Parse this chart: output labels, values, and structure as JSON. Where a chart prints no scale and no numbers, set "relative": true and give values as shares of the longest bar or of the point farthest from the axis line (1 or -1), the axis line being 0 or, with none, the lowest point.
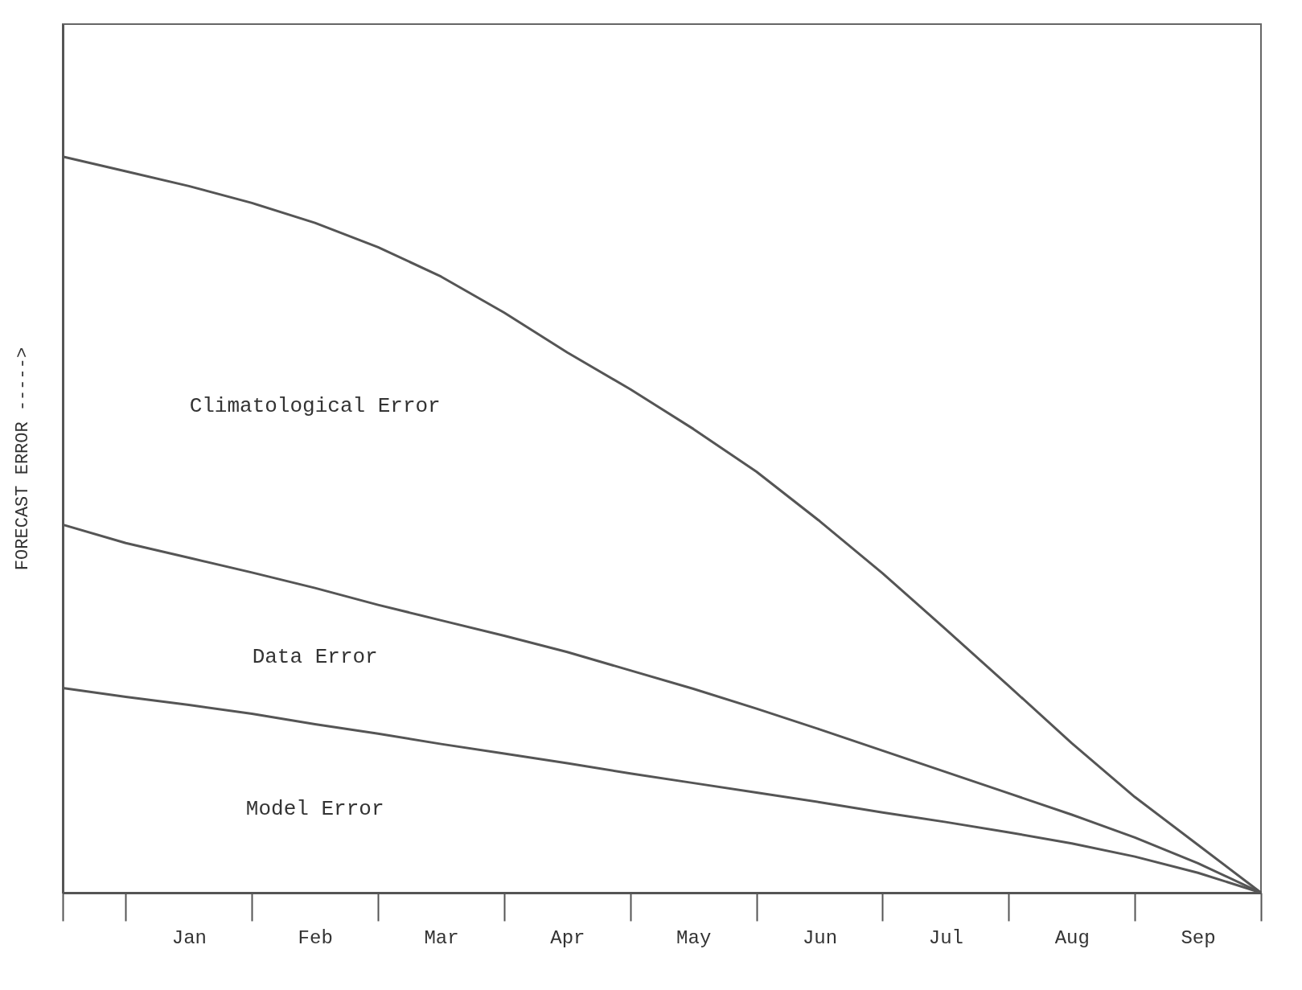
{
  "chart_data": {
    "type": "line",
    "relative": true,
    "ylabel": "FORECAST ERROR ----->",
    "tick_labels": "x",
    "grid": false,
    "legend": false,
    "marker": "none",
    "line_style": "solid",
    "categories": [
      null,
      null,
      "Jan",
      null,
      "Feb",
      null,
      "Mar",
      null,
      "Apr",
      null,
      "May",
      null,
      "Jun",
      null,
      "Jul",
      null,
      "Aug",
      null,
      "Sep",
      null
    ],
    "series": [
      {
        "color": "#555555",
        "values": [
          1,
          0.98,
          0.96,
          0.937,
          0.91,
          0.877,
          0.837,
          0.788,
          0.734,
          0.684,
          0.63,
          0.572,
          0.505,
          0.434,
          0.358,
          0.281,
          0.203,
          0.13,
          0.065,
          0
        ]
      },
      {
        "color": "#555555",
        "values": [
          0.5,
          0.475,
          0.455,
          0.435,
          0.414,
          0.391,
          0.37,
          0.349,
          0.327,
          0.302,
          0.277,
          0.25,
          0.222,
          0.193,
          0.164,
          0.135,
          0.106,
          0.075,
          0.04,
          0
        ]
      },
      {
        "color": "#555555",
        "values": [
          0.278,
          0.266,
          0.255,
          0.243,
          0.229,
          0.216,
          0.202,
          0.189,
          0.176,
          0.162,
          0.149,
          0.136,
          0.123,
          0.109,
          0.096,
          0.082,
          0.067,
          0.049,
          0.027,
          0
        ]
      }
    ],
    "annotations": [
      "Climatological Error",
      "Data Error",
      "Model Error"
    ]
  }
}
